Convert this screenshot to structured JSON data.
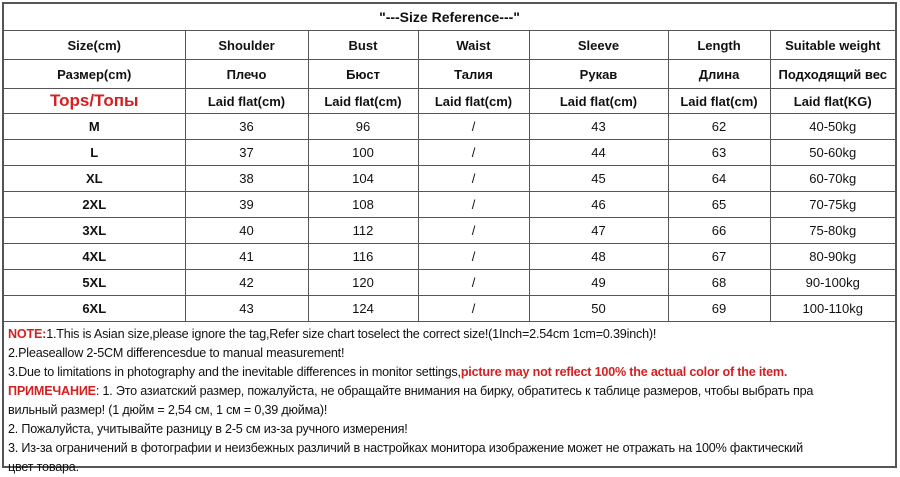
{
  "title": "\"---Size Reference---\"",
  "header_en": [
    "Size(cm)",
    "Shoulder",
    "Bust",
    "Waist",
    "Sleeve",
    "Length",
    "Suitable weight"
  ],
  "header_ru": [
    "Размер(cm)",
    "Плечо",
    "Бюст",
    "Талия",
    "Рукав",
    "Длина",
    "Подходящий вес"
  ],
  "header_unit": [
    "Tops/Топы",
    "Laid flat(cm)",
    "Laid flat(cm)",
    "Laid flat(cm)",
    "Laid flat(cm)",
    "Laid flat(cm)",
    "Laid flat(KG)"
  ],
  "rows": [
    [
      "M",
      "36",
      "96",
      "/",
      "43",
      "62",
      "40-50kg"
    ],
    [
      "L",
      "37",
      "100",
      "/",
      "44",
      "63",
      "50-60kg"
    ],
    [
      "XL",
      "38",
      "104",
      "/",
      "45",
      "64",
      "60-70kg"
    ],
    [
      "2XL",
      "39",
      "108",
      "/",
      "46",
      "65",
      "70-75kg"
    ],
    [
      "3XL",
      "40",
      "112",
      "/",
      "47",
      "66",
      "75-80kg"
    ],
    [
      "4XL",
      "41",
      "116",
      "/",
      "48",
      "67",
      "80-90kg"
    ],
    [
      "5XL",
      "42",
      "120",
      "/",
      "49",
      "68",
      "90-100kg"
    ],
    [
      "6XL",
      "43",
      "124",
      "/",
      "50",
      "69",
      "100-110kg"
    ]
  ],
  "notes": {
    "n1_label": "NOTE:",
    "n1": "1.This is Asian size,please ignore the tag,Refer size chart toselect the correct size!(1Inch=2.54cm 1cm=0.39inch)!",
    "n2": "2.Pleaseallow 2-5CM differencesdue to manual measurement!",
    "n3": "3.Due to limitations in photography and the inevitable differences in monitor settings,",
    "n3_red": "picture may not reflect 100% the actual color of the item.",
    "ru1_label": "ПРИМЕЧАНИЕ",
    "ru1": ": 1. Это азиатский размер, пожалуйста, не обращайте внимания на бирку, обратитесь к таблице размеров, чтобы выбрать пра",
    "ru1b": "вильный размер! (1 дюйм = 2,54 см, 1 см = 0,39 дюйма)!",
    "ru2": "2. Пожалуйста, учитывайте разницу в 2-5 см из-за ручного измерения!",
    "ru3": "3. Из-за ограничений в фотографии и неизбежных различий в настройках монитора изображение может не отражать на 100% фактический",
    "ru3b": "цвет товара."
  },
  "colors": {
    "accent_red": "#d42020",
    "border": "#555555"
  }
}
